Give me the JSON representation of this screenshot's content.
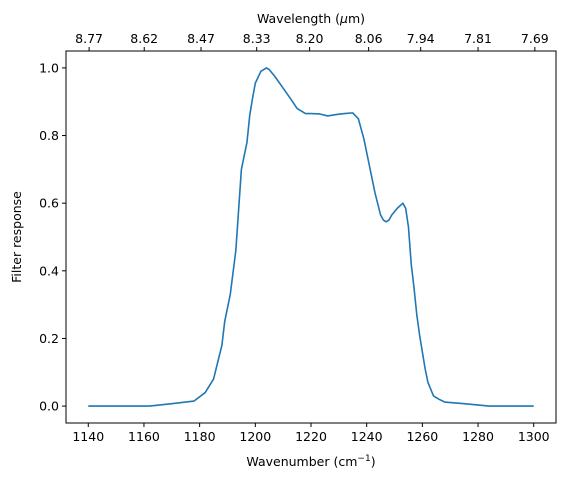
{
  "chart_data": {
    "type": "line",
    "xlabel_text": "Wavenumber (cm",
    "xlabel_sup": "−1",
    "xlabel_end": ")",
    "ylabel": "Filter response",
    "top_xlabel_text": "Wavelength (",
    "top_xlabel_mu": "μ",
    "top_xlabel_end": "m)",
    "xlim": [
      1132,
      1308
    ],
    "ylim": [
      -0.05,
      1.05
    ],
    "x_ticks": [
      1140,
      1160,
      1180,
      1200,
      1220,
      1240,
      1260,
      1280,
      1300
    ],
    "x_tick_labels": [
      "1140",
      "1160",
      "1180",
      "1200",
      "1220",
      "1240",
      "1260",
      "1280",
      "1300"
    ],
    "y_ticks": [
      0.0,
      0.2,
      0.4,
      0.6,
      0.8,
      1.0
    ],
    "y_tick_labels": [
      "0.0",
      "0.2",
      "0.4",
      "0.6",
      "0.8",
      "1.0"
    ],
    "top_ticks_wavenumber": [
      1140.3,
      1160.1,
      1180.5,
      1200.5,
      1219.5,
      1240.7,
      1259.4,
      1280.0,
      1300.4
    ],
    "top_tick_labels": [
      "8.77",
      "8.62",
      "8.47",
      "8.33",
      "8.20",
      "8.06",
      "7.94",
      "7.81",
      "7.69"
    ],
    "line_color": "#1f77b4",
    "grid": false,
    "series": [
      {
        "x": [
          1140,
          1150,
          1162,
          1170,
          1178,
          1182,
          1185,
          1188,
          1189,
          1191,
          1193,
          1194,
          1195,
          1196,
          1197,
          1198,
          1199,
          1200,
          1202,
          1204,
          1205,
          1207,
          1210,
          1213,
          1215,
          1218,
          1220,
          1223,
          1226,
          1229,
          1232,
          1235,
          1237,
          1239,
          1241,
          1243,
          1245,
          1246,
          1247,
          1248,
          1249,
          1251,
          1253,
          1254,
          1255,
          1256,
          1257,
          1258,
          1259,
          1260,
          1261,
          1262,
          1264,
          1266,
          1268,
          1275,
          1284,
          1300
        ],
        "y": [
          0.0,
          0.0,
          0.0,
          0.007,
          0.015,
          0.04,
          0.08,
          0.18,
          0.25,
          0.33,
          0.46,
          0.58,
          0.7,
          0.74,
          0.78,
          0.86,
          0.91,
          0.955,
          0.99,
          1.0,
          0.995,
          0.975,
          0.94,
          0.905,
          0.88,
          0.865,
          0.865,
          0.864,
          0.858,
          0.862,
          0.865,
          0.867,
          0.85,
          0.79,
          0.71,
          0.63,
          0.565,
          0.55,
          0.545,
          0.55,
          0.565,
          0.585,
          0.6,
          0.585,
          0.53,
          0.42,
          0.35,
          0.27,
          0.21,
          0.16,
          0.11,
          0.07,
          0.03,
          0.02,
          0.012,
          0.007,
          0.0,
          0.0
        ]
      }
    ]
  }
}
